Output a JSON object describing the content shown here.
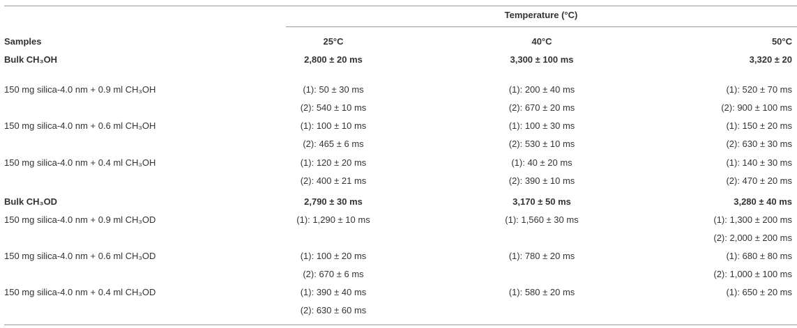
{
  "table": {
    "group_header": "Temperature (°C)",
    "columns": [
      "Samples",
      "25°C",
      "40°C",
      "50°C"
    ],
    "rows": [
      {
        "sample": "Bulk CH₃OH",
        "bold": true,
        "cells": [
          [
            "2,800 ± 20 ms"
          ],
          [
            "3,300 ± 100 ms"
          ],
          [
            "3,320 ± 20"
          ]
        ]
      },
      {
        "sample": "150 mg silica-4.0 nm + 0.9 ml CH₃OH",
        "cells": [
          [
            "(1): 50 ± 30 ms",
            "(2): 540 ± 10 ms"
          ],
          [
            "(1): 200 ± 40 ms",
            "(2): 670 ± 20 ms"
          ],
          [
            "(1): 520 ± 70 ms",
            "(2): 900 ± 100 ms"
          ]
        ]
      },
      {
        "sample": "150 mg silica-4.0 nm + 0.6 ml CH₃OH",
        "cells": [
          [
            "(1): 100 ± 10 ms",
            "(2): 465 ± 6 ms"
          ],
          [
            "(1): 100 ± 30 ms",
            "(2): 530 ± 10 ms"
          ],
          [
            "(1): 150 ± 20 ms",
            "(2): 630 ± 30 ms"
          ]
        ]
      },
      {
        "sample": "150 mg silica-4.0 nm + 0.4 ml CH₃OH",
        "cells": [
          [
            "(1): 120 ± 20 ms",
            "(2): 400 ± 21 ms"
          ],
          [
            "(1): 40 ± 20 ms",
            "(2): 390 ± 10 ms"
          ],
          [
            "(1): 140 ± 30 ms",
            "(2): 470 ± 20 ms"
          ]
        ]
      },
      {
        "sample": "Bulk CH₃OD",
        "bold": true,
        "cells": [
          [
            "2,790 ± 30 ms"
          ],
          [
            "3,170 ± 50 ms"
          ],
          [
            "3,280 ± 40 ms"
          ]
        ]
      },
      {
        "sample": "150 mg silica-4.0 nm + 0.9 ml CH₃OD",
        "cells": [
          [
            "(1): 1,290 ± 10 ms"
          ],
          [
            "(1): 1,560 ± 30 ms"
          ],
          [
            "(1): 1,300 ± 200 ms",
            "(2): 2,000 ± 200 ms"
          ]
        ]
      },
      {
        "sample": "150 mg silica-4.0 nm + 0.6 ml CH₃OD",
        "cells": [
          [
            "(1): 100 ± 20 ms",
            "(2): 670 ± 6 ms"
          ],
          [
            "(1): 780 ± 20 ms"
          ],
          [
            "(1): 680 ± 80 ms",
            "(2): 1,000 ± 100 ms"
          ]
        ]
      },
      {
        "sample": "150 mg silica-4.0 nm + 0.4 ml CH₃OD",
        "cells": [
          [
            "(1): 390 ± 40 ms",
            "(2): 630 ± 60 ms"
          ],
          [
            "(1): 580 ± 20 ms"
          ],
          [
            "(1): 650 ± 20 ms"
          ]
        ]
      }
    ]
  }
}
